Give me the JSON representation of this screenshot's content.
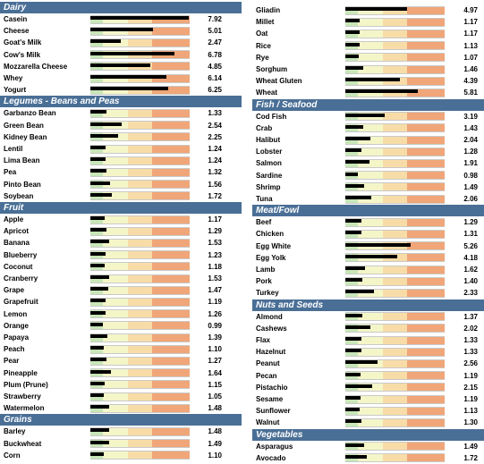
{
  "chart_data": {
    "type": "bar",
    "orientation": "horizontal",
    "x_range": [
      0,
      8
    ],
    "zone_colors": [
      "#c8e6b8",
      "#f4f6c8",
      "#f8dca8",
      "#f0a678"
    ],
    "zone_bounds": [
      1,
      2,
      3,
      4,
      5,
      6,
      7
    ],
    "zone_shade_index": [
      0,
      1,
      1,
      2,
      2,
      3,
      3
    ],
    "header_color": "#4a6f96",
    "columns": [
      [
        {
          "group": "Dairy",
          "items": [
            {
              "label": "Casein",
              "value": 7.92
            },
            {
              "label": "Cheese",
              "value": 5.01
            },
            {
              "label": "Goat's Milk",
              "value": 2.47
            },
            {
              "label": "Cow's Milk",
              "value": 6.78
            },
            {
              "label": "Mozzarella Cheese",
              "value": 4.85
            },
            {
              "label": "Whey",
              "value": 6.14
            },
            {
              "label": "Yogurt",
              "value": 6.25
            }
          ]
        },
        {
          "group": "Legumes - Beans and Peas",
          "items": [
            {
              "label": "Garbanzo Bean",
              "value": 1.33
            },
            {
              "label": "Green Bean",
              "value": 2.54
            },
            {
              "label": "Kidney Bean",
              "value": 2.25
            },
            {
              "label": "Lentil",
              "value": 1.24
            },
            {
              "label": "Lima Bean",
              "value": 1.24
            },
            {
              "label": "Pea",
              "value": 1.32
            },
            {
              "label": "Pinto Bean",
              "value": 1.56
            },
            {
              "label": "Soybean",
              "value": 1.72
            }
          ]
        },
        {
          "group": "Fruit",
          "items": [
            {
              "label": "Apple",
              "value": 1.17
            },
            {
              "label": "Apricot",
              "value": 1.29
            },
            {
              "label": "Banana",
              "value": 1.53
            },
            {
              "label": "Blueberry",
              "value": 1.23
            },
            {
              "label": "Coconut",
              "value": 1.18
            },
            {
              "label": "Cranberry",
              "value": 1.53
            },
            {
              "label": "Grape",
              "value": 1.47
            },
            {
              "label": "Grapefruit",
              "value": 1.19
            },
            {
              "label": "Lemon",
              "value": 1.26
            },
            {
              "label": "Orange",
              "value": 0.99
            },
            {
              "label": "Papaya",
              "value": 1.39
            },
            {
              "label": "Peach",
              "value": 1.1
            },
            {
              "label": "Pear",
              "value": 1.27
            },
            {
              "label": "Pineapple",
              "value": 1.64
            },
            {
              "label": "Plum (Prune)",
              "value": 1.15
            },
            {
              "label": "Strawberry",
              "value": 1.05
            },
            {
              "label": "Watermelon",
              "value": 1.48
            }
          ]
        },
        {
          "group": "Grains",
          "items": [
            {
              "label": "Barley",
              "value": 1.48
            },
            {
              "label": "Buckwheat",
              "value": 1.49
            },
            {
              "label": "Corn",
              "value": 1.1
            }
          ]
        }
      ],
      [
        {
          "group": "",
          "items": [
            {
              "label": "Gliadin",
              "value": 4.97
            },
            {
              "label": "Millet",
              "value": 1.17
            },
            {
              "label": "Oat",
              "value": 1.17
            },
            {
              "label": "Rice",
              "value": 1.13
            },
            {
              "label": "Rye",
              "value": 1.07
            },
            {
              "label": "Sorghum",
              "value": 1.46
            },
            {
              "label": "Wheat Gluten",
              "value": 4.39
            },
            {
              "label": "Wheat",
              "value": 5.81
            }
          ]
        },
        {
          "group": "Fish / Seafood",
          "items": [
            {
              "label": "Cod Fish",
              "value": 3.19
            },
            {
              "label": "Crab",
              "value": 1.43
            },
            {
              "label": "Halibut",
              "value": 2.04
            },
            {
              "label": "Lobster",
              "value": 1.28
            },
            {
              "label": "Salmon",
              "value": 1.91
            },
            {
              "label": "Sardine",
              "value": 0.98
            },
            {
              "label": "Shrimp",
              "value": 1.49
            },
            {
              "label": "Tuna",
              "value": 2.06
            }
          ]
        },
        {
          "group": "Meat/Fowl",
          "items": [
            {
              "label": "Beef",
              "value": 1.29
            },
            {
              "label": "Chicken",
              "value": 1.31
            },
            {
              "label": "Egg White",
              "value": 5.26
            },
            {
              "label": "Egg Yolk",
              "value": 4.18
            },
            {
              "label": "Lamb",
              "value": 1.62
            },
            {
              "label": "Pork",
              "value": 1.4
            },
            {
              "label": "Turkey",
              "value": 2.33
            }
          ]
        },
        {
          "group": "Nuts and Seeds",
          "items": [
            {
              "label": "Almond",
              "value": 1.37
            },
            {
              "label": "Cashews",
              "value": 2.02
            },
            {
              "label": "Flax",
              "value": 1.33
            },
            {
              "label": "Hazelnut",
              "value": 1.33
            },
            {
              "label": "Peanut",
              "value": 2.56
            },
            {
              "label": "Pecan",
              "value": 1.19
            },
            {
              "label": "Pistachio",
              "value": 2.15
            },
            {
              "label": "Sesame",
              "value": 1.19
            },
            {
              "label": "Sunflower",
              "value": 1.13
            },
            {
              "label": "Walnut",
              "value": 1.3
            }
          ]
        },
        {
          "group": "Vegetables",
          "items": [
            {
              "label": "Asparagus",
              "value": 1.49
            },
            {
              "label": "Avocado",
              "value": 1.72
            }
          ]
        }
      ]
    ]
  }
}
